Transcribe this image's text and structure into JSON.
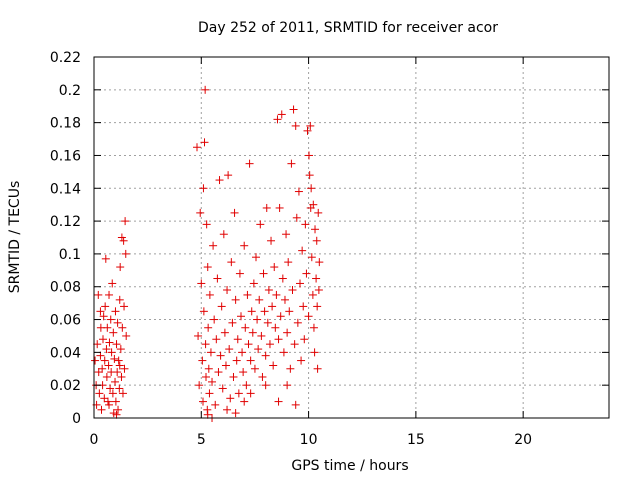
{
  "chart_data": {
    "type": "scatter",
    "title": "Day 252 of 2011, SRMTID for receiver acor",
    "xlabel": "GPS time / hours",
    "ylabel": "SRMTID / TECUs",
    "xlim": [
      0,
      24
    ],
    "ylim": [
      0,
      0.22
    ],
    "xticks": [
      0,
      5,
      10,
      15,
      20
    ],
    "xtick_labels": [
      "0",
      "5",
      "10",
      "15",
      "20"
    ],
    "yticks": [
      0,
      0.02,
      0.04,
      0.06,
      0.08,
      0.1,
      0.12,
      0.14,
      0.16,
      0.18,
      0.2,
      0.22
    ],
    "ytick_labels": [
      "0",
      "0.02",
      "0.04",
      "0.06",
      "0.08",
      "0.1",
      "0.12",
      "0.14",
      "0.16",
      "0.18",
      "0.2",
      "0.22"
    ],
    "grid": true,
    "marker": "+",
    "color": "#e00000",
    "series": [
      {
        "name": "SRMTID",
        "points": [
          [
            0.05,
            0.035
          ],
          [
            0.1,
            0.02
          ],
          [
            0.12,
            0.008
          ],
          [
            0.15,
            0.045
          ],
          [
            0.2,
            0.075
          ],
          [
            0.22,
            0.028
          ],
          [
            0.25,
            0.015
          ],
          [
            0.3,
            0.038
          ],
          [
            0.32,
            0.055
          ],
          [
            0.35,
            0.005
          ],
          [
            0.38,
            0.03
          ],
          [
            0.4,
            0.02
          ],
          [
            0.42,
            0.048
          ],
          [
            0.45,
            0.062
          ],
          [
            0.48,
            0.012
          ],
          [
            0.5,
            0.035
          ],
          [
            0.52,
            0.068
          ],
          [
            0.55,
            0.097
          ],
          [
            0.58,
            0.042
          ],
          [
            0.6,
            0.025
          ],
          [
            0.62,
            0.055
          ],
          [
            0.65,
            0.01
          ],
          [
            0.68,
            0.032
          ],
          [
            0.7,
            0.075
          ],
          [
            0.72,
            0.046
          ],
          [
            0.75,
            0.018
          ],
          [
            0.78,
            0.06
          ],
          [
            0.8,
            0.028
          ],
          [
            0.82,
            0.04
          ],
          [
            0.85,
            0.082
          ],
          [
            0.88,
            0.015
          ],
          [
            0.9,
            0.052
          ],
          [
            0.92,
            0.003
          ],
          [
            0.95,
            0.036
          ],
          [
            0.98,
            0.022
          ],
          [
            1.0,
            0.065
          ],
          [
            1.02,
            0.01
          ],
          [
            1.05,
            0.045
          ],
          [
            1.08,
            0.028
          ],
          [
            1.1,
            0.058
          ],
          [
            1.12,
            0.005
          ],
          [
            1.15,
            0.035
          ],
          [
            1.18,
            0.018
          ],
          [
            1.2,
            0.072
          ],
          [
            1.22,
            0.092
          ],
          [
            1.25,
            0.042
          ],
          [
            1.28,
            0.025
          ],
          [
            1.3,
            0.11
          ],
          [
            1.32,
            0.055
          ],
          [
            1.35,
            0.015
          ],
          [
            1.38,
            0.108
          ],
          [
            1.4,
            0.068
          ],
          [
            1.42,
            0.03
          ],
          [
            1.45,
            0.12
          ],
          [
            1.48,
            0.1
          ],
          [
            1.5,
            0.05
          ],
          [
            0.3,
            0.065
          ],
          [
            0.7,
            0.008
          ],
          [
            1.05,
            0.002
          ],
          [
            1.2,
            0.032
          ],
          [
            4.8,
            0.165
          ],
          [
            4.85,
            0.05
          ],
          [
            4.9,
            0.02
          ],
          [
            4.95,
            0.125
          ],
          [
            5.0,
            0.082
          ],
          [
            5.05,
            0.035
          ],
          [
            5.08,
            0.01
          ],
          [
            5.1,
            0.14
          ],
          [
            5.12,
            0.065
          ],
          [
            5.15,
            0.168
          ],
          [
            5.18,
            0.2
          ],
          [
            5.2,
            0.045
          ],
          [
            5.22,
            0.025
          ],
          [
            5.25,
            0.118
          ],
          [
            5.28,
            0.005
          ],
          [
            5.3,
            0.092
          ],
          [
            5.32,
            0.055
          ],
          [
            5.35,
            0.03
          ],
          [
            5.38,
            0.015
          ],
          [
            5.4,
            0.075
          ],
          [
            5.45,
            0.04
          ],
          [
            5.5,
            0.022
          ],
          [
            5.55,
            0.105
          ],
          [
            5.6,
            0.06
          ],
          [
            5.65,
            0.008
          ],
          [
            5.7,
            0.048
          ],
          [
            5.75,
            0.085
          ],
          [
            5.8,
            0.028
          ],
          [
            5.85,
            0.145
          ],
          [
            5.9,
            0.038
          ],
          [
            5.95,
            0.068
          ],
          [
            6.0,
            0.018
          ],
          [
            6.05,
            0.112
          ],
          [
            6.1,
            0.052
          ],
          [
            6.15,
            0.032
          ],
          [
            6.2,
            0.078
          ],
          [
            6.25,
            0.148
          ],
          [
            6.3,
            0.042
          ],
          [
            6.35,
            0.012
          ],
          [
            6.4,
            0.095
          ],
          [
            6.45,
            0.058
          ],
          [
            6.5,
            0.025
          ],
          [
            6.55,
            0.125
          ],
          [
            6.6,
            0.072
          ],
          [
            6.65,
            0.035
          ],
          [
            6.7,
            0.048
          ],
          [
            6.75,
            0.015
          ],
          [
            6.8,
            0.088
          ],
          [
            6.85,
            0.062
          ],
          [
            6.9,
            0.04
          ],
          [
            6.95,
            0.028
          ],
          [
            7.0,
            0.105
          ],
          [
            7.05,
            0.055
          ],
          [
            7.1,
            0.02
          ],
          [
            7.15,
            0.075
          ],
          [
            7.2,
            0.045
          ],
          [
            7.25,
            0.155
          ],
          [
            7.3,
            0.035
          ],
          [
            7.35,
            0.065
          ],
          [
            7.4,
            0.052
          ],
          [
            7.45,
            0.082
          ],
          [
            7.5,
            0.03
          ],
          [
            7.55,
            0.098
          ],
          [
            7.6,
            0.06
          ],
          [
            7.65,
            0.042
          ],
          [
            7.7,
            0.072
          ],
          [
            7.75,
            0.118
          ],
          [
            7.8,
            0.05
          ],
          [
            7.85,
            0.025
          ],
          [
            7.9,
            0.088
          ],
          [
            7.95,
            0.065
          ],
          [
            8.0,
            0.038
          ],
          [
            8.05,
            0.128
          ],
          [
            8.1,
            0.058
          ],
          [
            8.15,
            0.078
          ],
          [
            8.2,
            0.045
          ],
          [
            8.25,
            0.108
          ],
          [
            8.3,
            0.068
          ],
          [
            8.35,
            0.032
          ],
          [
            8.4,
            0.092
          ],
          [
            8.45,
            0.055
          ],
          [
            8.5,
            0.075
          ],
          [
            8.55,
            0.182
          ],
          [
            8.6,
            0.048
          ],
          [
            8.65,
            0.128
          ],
          [
            8.7,
            0.062
          ],
          [
            8.75,
            0.185
          ],
          [
            8.8,
            0.085
          ],
          [
            8.85,
            0.04
          ],
          [
            8.9,
            0.072
          ],
          [
            8.95,
            0.112
          ],
          [
            9.0,
            0.052
          ],
          [
            9.05,
            0.095
          ],
          [
            9.1,
            0.065
          ],
          [
            9.15,
            0.03
          ],
          [
            9.2,
            0.155
          ],
          [
            9.25,
            0.078
          ],
          [
            9.3,
            0.188
          ],
          [
            9.35,
            0.045
          ],
          [
            9.4,
            0.178
          ],
          [
            9.45,
            0.122
          ],
          [
            9.5,
            0.058
          ],
          [
            9.55,
            0.138
          ],
          [
            9.6,
            0.082
          ],
          [
            9.65,
            0.035
          ],
          [
            9.7,
            0.102
          ],
          [
            9.75,
            0.068
          ],
          [
            9.8,
            0.048
          ],
          [
            9.85,
            0.118
          ],
          [
            9.9,
            0.088
          ],
          [
            9.95,
            0.175
          ],
          [
            10.0,
            0.062
          ],
          [
            10.05,
            0.148
          ],
          [
            10.1,
            0.128
          ],
          [
            10.15,
            0.098
          ],
          [
            10.2,
            0.075
          ],
          [
            10.25,
            0.055
          ],
          [
            10.3,
            0.115
          ],
          [
            10.35,
            0.085
          ],
          [
            10.4,
            0.068
          ],
          [
            10.45,
            0.125
          ],
          [
            10.5,
            0.095
          ],
          [
            10.02,
            0.16
          ],
          [
            10.08,
            0.178
          ],
          [
            10.12,
            0.14
          ],
          [
            10.22,
            0.13
          ],
          [
            10.28,
            0.04
          ],
          [
            10.38,
            0.108
          ],
          [
            10.42,
            0.03
          ],
          [
            10.48,
            0.078
          ],
          [
            5.3,
            0.002
          ],
          [
            5.5,
            0.0
          ],
          [
            6.2,
            0.005
          ],
          [
            6.6,
            0.003
          ],
          [
            7.0,
            0.01
          ],
          [
            7.3,
            0.015
          ],
          [
            8.0,
            0.02
          ],
          [
            8.6,
            0.01
          ],
          [
            9.0,
            0.02
          ],
          [
            9.4,
            0.008
          ]
        ]
      }
    ]
  }
}
